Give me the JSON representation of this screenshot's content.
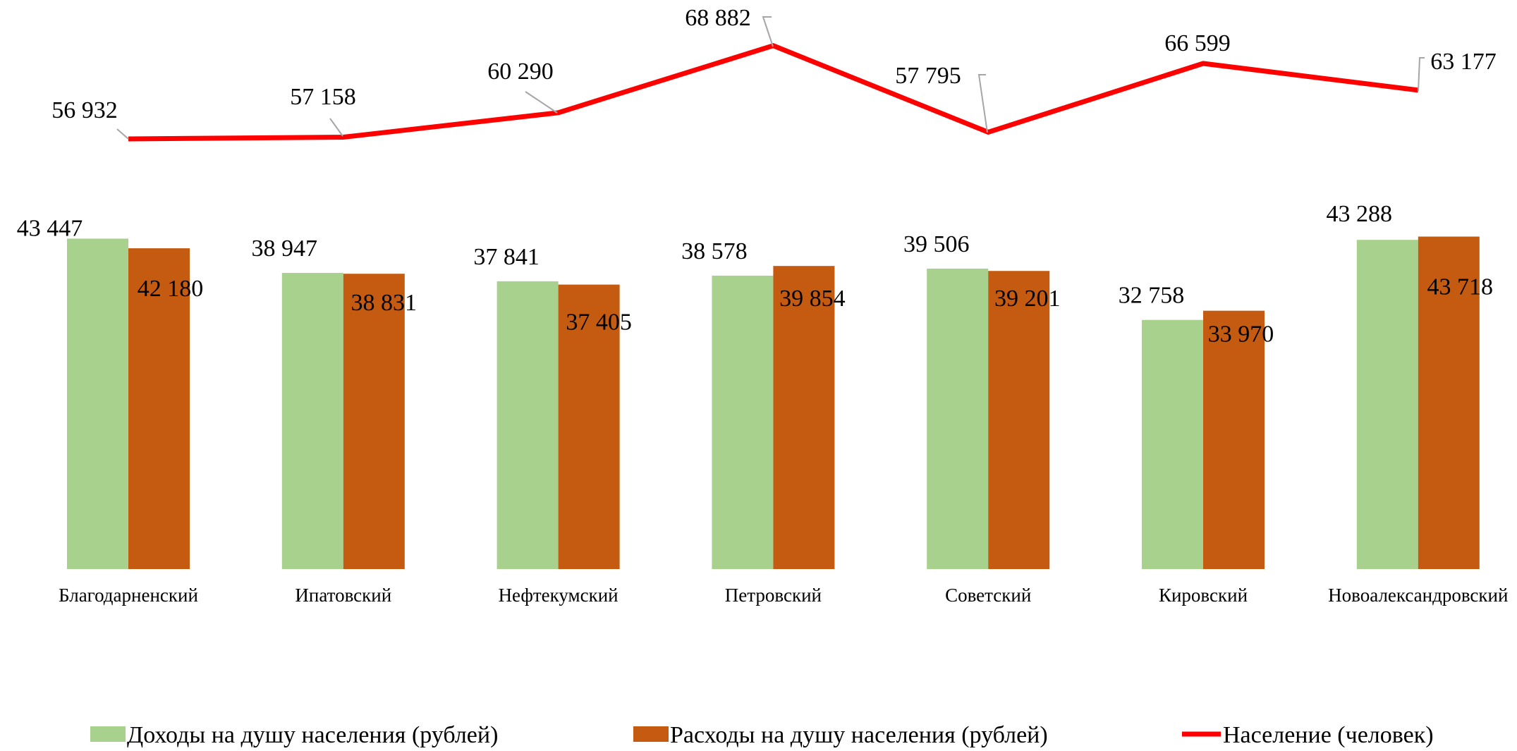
{
  "chart_data": {
    "type": "bar",
    "categories": [
      "Благодарненский",
      "Ипатовский",
      "Нефтекумский",
      "Петровский",
      "Советский",
      "Кировский",
      "Новоалександровский"
    ],
    "series": [
      {
        "name": "Доходы на душу населения (рублей)",
        "type": "bar",
        "color": "#a9d18e",
        "values": [
          43447,
          38947,
          37841,
          38578,
          39506,
          32758,
          43288
        ],
        "labels": [
          "43 447",
          "38 947",
          "37 841",
          "38 578",
          "39 506",
          "32 758",
          "43 288"
        ]
      },
      {
        "name": "Расходы на душу населения (рублей)",
        "type": "bar",
        "color": "#c55a11",
        "values": [
          42180,
          38831,
          37405,
          39854,
          39201,
          33970,
          43718
        ],
        "labels": [
          "42 180",
          "38 831",
          "37 405",
          "39 854",
          "39 201",
          "33 970",
          "43 718"
        ]
      },
      {
        "name": "Население (человек)",
        "type": "line",
        "color": "#ff0000",
        "values": [
          56932,
          57158,
          60290,
          68882,
          57795,
          66599,
          63177
        ],
        "labels": [
          "56 932",
          "57 158",
          "60 290",
          "68 882",
          "57 795",
          "66 599",
          "63 177"
        ]
      }
    ],
    "legend_position": "bottom",
    "grid": false
  }
}
